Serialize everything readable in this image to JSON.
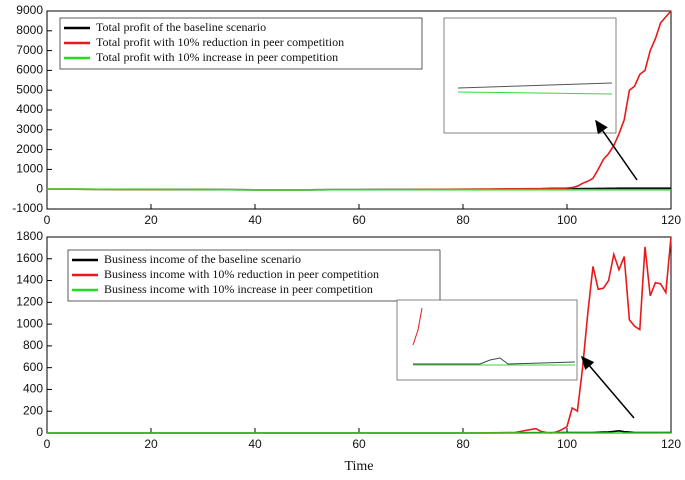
{
  "chart_data": [
    {
      "type": "line",
      "x": [
        0,
        5,
        10,
        15,
        20,
        25,
        30,
        35,
        40,
        45,
        50,
        55,
        60,
        65,
        70,
        75,
        80,
        85,
        90,
        95,
        96,
        97,
        98,
        99,
        100,
        101,
        102,
        103,
        104,
        105,
        106,
        107,
        108,
        109,
        110,
        111,
        112,
        113,
        114,
        115,
        116,
        117,
        118,
        119,
        120
      ],
      "series": [
        {
          "name": "Total profit of the baseline scenario",
          "color": "#000000",
          "values": [
            0,
            0,
            -5,
            -10,
            -10,
            -15,
            -20,
            -25,
            -30,
            -30,
            -30,
            -25,
            -25,
            -20,
            -20,
            -15,
            -10,
            -5,
            0,
            5,
            10,
            10,
            15,
            15,
            20,
            20,
            25,
            30,
            30,
            35,
            40,
            40,
            45,
            45,
            50,
            50,
            50,
            50,
            50,
            50,
            50,
            50,
            50,
            50,
            50
          ]
        },
        {
          "name": "Total profit with 10% reduction in peer competition",
          "color": "#e8191a",
          "values": [
            0,
            0,
            -5,
            -10,
            -10,
            -15,
            -20,
            -25,
            -30,
            -30,
            -30,
            -25,
            -25,
            -20,
            -15,
            -10,
            0,
            10,
            20,
            30,
            40,
            50,
            50,
            50,
            60,
            80,
            150,
            300,
            400,
            550,
            1000,
            1500,
            1800,
            2200,
            2800,
            3500,
            5000,
            5200,
            5800,
            6000,
            7000,
            7600,
            8400,
            8700,
            9000
          ]
        },
        {
          "name": "Total profit with 10% increase in peer competition",
          "color": "#22dd22",
          "values": [
            0,
            0,
            -5,
            -10,
            -10,
            -15,
            -20,
            -25,
            -30,
            -30,
            -30,
            -25,
            -25,
            -25,
            -25,
            -25,
            -25,
            -25,
            -25,
            -25,
            -25,
            -25,
            -25,
            -25,
            -25,
            -25,
            -25,
            -25,
            -25,
            -25,
            -25,
            -25,
            -25,
            -25,
            -25,
            -25,
            -25,
            -25,
            -25,
            -25,
            -25,
            -25,
            -25,
            -25,
            -25
          ]
        }
      ],
      "xlim": [
        0,
        120
      ],
      "xticks": [
        0,
        20,
        40,
        60,
        80,
        100,
        120
      ],
      "ylim": [
        -1000,
        9000
      ],
      "yticks": [
        -1000,
        0,
        1000,
        2000,
        3000,
        4000,
        5000,
        6000,
        7000,
        8000,
        9000
      ],
      "legend": "upper left"
    },
    {
      "type": "line",
      "x_label": "Time",
      "x": [
        0,
        5,
        10,
        15,
        20,
        25,
        30,
        35,
        40,
        45,
        50,
        55,
        60,
        65,
        70,
        75,
        80,
        85,
        90,
        94,
        95,
        96,
        97,
        98,
        99,
        100,
        101,
        102,
        103,
        104,
        105,
        106,
        107,
        108,
        109,
        110,
        111,
        112,
        113,
        114,
        115,
        116,
        117,
        118,
        119,
        120
      ],
      "series": [
        {
          "name": "Business income of the baseline scenario",
          "color": "#000000",
          "values": [
            0,
            0,
            0,
            0,
            0,
            0,
            0,
            0,
            0,
            0,
            0,
            0,
            0,
            0,
            0,
            0,
            0,
            0,
            2,
            3,
            3,
            3,
            3,
            3,
            4,
            4,
            5,
            5,
            5,
            5,
            5,
            6,
            8,
            10,
            15,
            20,
            12,
            8,
            5,
            5,
            5,
            5,
            5,
            5,
            5,
            5
          ]
        },
        {
          "name": "Business income with 10% reduction in peer competition",
          "color": "#e8191a",
          "values": [
            0,
            0,
            0,
            0,
            0,
            0,
            0,
            0,
            0,
            0,
            0,
            0,
            0,
            0,
            0,
            0,
            0,
            2,
            5,
            40,
            15,
            5,
            0,
            10,
            30,
            60,
            230,
            200,
            600,
            1100,
            1530,
            1320,
            1330,
            1400,
            1640,
            1500,
            1620,
            1040,
            980,
            950,
            1710,
            1260,
            1380,
            1370,
            1290,
            1800
          ]
        },
        {
          "name": "Business income with 10% increase in peer competition",
          "color": "#22dd22",
          "values": [
            0,
            0,
            0,
            0,
            0,
            0,
            0,
            0,
            0,
            0,
            0,
            0,
            0,
            0,
            0,
            0,
            0,
            0,
            0,
            0,
            0,
            0,
            0,
            0,
            0,
            0,
            0,
            0,
            0,
            0,
            0,
            0,
            0,
            0,
            0,
            0,
            0,
            0,
            0,
            0,
            0,
            0,
            0,
            0,
            0,
            0
          ]
        }
      ],
      "xlim": [
        0,
        120
      ],
      "xticks": [
        0,
        20,
        40,
        60,
        80,
        100,
        120
      ],
      "ylim": [
        0,
        1800
      ],
      "yticks": [
        0,
        200,
        400,
        600,
        800,
        1000,
        1200,
        1400,
        1600,
        1800
      ],
      "legend": "upper left"
    }
  ]
}
